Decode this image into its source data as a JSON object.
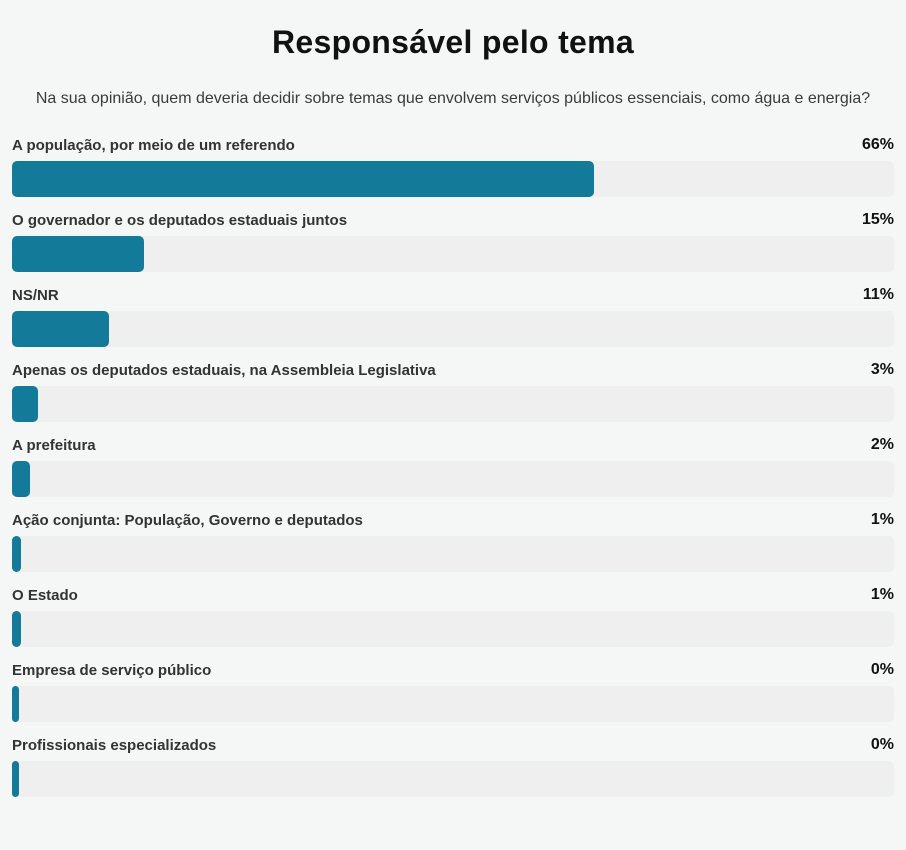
{
  "page": {
    "background_color": "#f5f6f6"
  },
  "chart_data": {
    "type": "bar",
    "orientation": "horizontal",
    "title": "Responsável pelo tema",
    "subtitle": "Na sua opinião, quem deveria decidir sobre temas que envolvem serviços públicos essenciais, como água e energia?",
    "categories": [
      "A população, por meio de um referendo",
      "O governador e os deputados estaduais juntos",
      "NS/NR",
      "Apenas os deputados estaduais, na Assembleia Legislativa",
      "A prefeitura",
      "Ação conjunta: População, Governo e deputados",
      "O Estado",
      "Empresa de serviço público",
      "Profissionais especializados"
    ],
    "values": [
      66,
      15,
      11,
      3,
      2,
      1,
      1,
      0,
      0
    ],
    "value_labels": [
      "66%",
      "15%",
      "11%",
      "3%",
      "2%",
      "1%",
      "1%",
      "0%",
      "0%"
    ],
    "xlim": [
      0,
      100
    ],
    "grid": false,
    "legend_position": "none",
    "bar_color": "#147a99",
    "track_color": "#efefef",
    "title_color": "#111111",
    "label_color": "#333333",
    "value_color": "#111111"
  }
}
